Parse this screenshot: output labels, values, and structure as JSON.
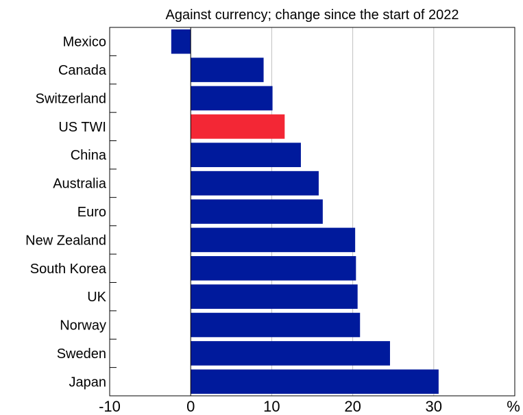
{
  "chart_data": {
    "type": "bar",
    "orientation": "horizontal",
    "title": "Against currency; change since the start of 2022",
    "unit": "%",
    "categories": [
      "Mexico",
      "Canada",
      "Switzerland",
      "US TWI",
      "China",
      "Australia",
      "Euro",
      "New Zealand",
      "South Korea",
      "UK",
      "Norway",
      "Sweden",
      "Japan"
    ],
    "values": [
      -2.4,
      9.0,
      10.1,
      11.6,
      13.6,
      15.8,
      16.3,
      20.3,
      20.4,
      20.6,
      20.9,
      24.6,
      30.6
    ],
    "highlight": "US TWI",
    "xlim": [
      -10,
      40
    ],
    "xticks": [
      "-10",
      "0",
      "10",
      "20",
      "30"
    ],
    "grid": true,
    "colors": {
      "bar": "#001a9c",
      "highlight": "#f32735",
      "grid": "#c0c0c0"
    }
  }
}
